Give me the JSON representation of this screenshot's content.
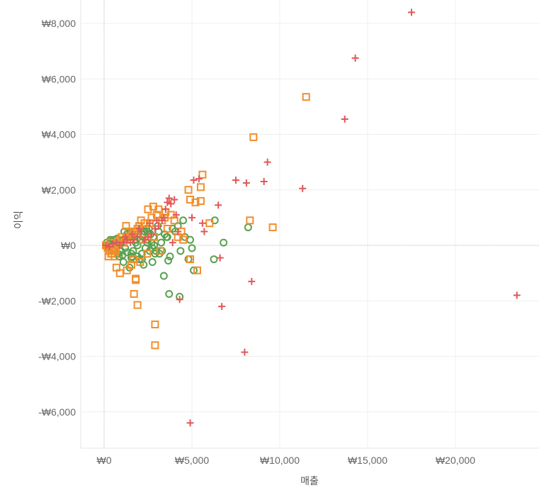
{
  "chart_data": {
    "type": "scatter",
    "title": "",
    "xlabel": "매출",
    "ylabel": "이익",
    "xlim": [
      -1300,
      24800
    ],
    "ylim": [
      -7300,
      8600
    ],
    "x_ticks": [
      0,
      5000,
      10000,
      15000,
      20000
    ],
    "x_tick_labels": [
      "₩0",
      "₩5,000",
      "₩10,000",
      "₩15,000",
      "₩20,000"
    ],
    "y_ticks": [
      -6000,
      -4000,
      -2000,
      0,
      2000,
      4000,
      6000,
      8000
    ],
    "y_tick_labels": [
      "-₩6,000",
      "-₩4,000",
      "-₩2,000",
      "₩0",
      "₩2,000",
      "₩4,000",
      "₩6,000",
      "₩8,000"
    ],
    "grid": true,
    "legend": "none",
    "colors": {
      "series_1": "#59a14f",
      "series_2": "#f28e2b",
      "series_3": "#e15759"
    },
    "series": [
      {
        "marker": "circle",
        "color": "#59a14f",
        "x": [
          4500,
          4900,
          5000,
          6300,
          6800,
          8200,
          6250,
          4600,
          4800,
          5100,
          3900,
          3600,
          3400,
          4200,
          3700,
          4300,
          3650,
          3300,
          2700,
          2800,
          3100,
          2900,
          2500,
          2200,
          2600,
          1900,
          1500,
          1200,
          1400,
          2300,
          2100,
          1800,
          1600,
          1000,
          900,
          700,
          500,
          300,
          100,
          600,
          400,
          1300,
          1700,
          2000,
          2400,
          800,
          1100,
          1450,
          1750,
          2050,
          2350,
          2650,
          2950,
          3250,
          3550,
          200,
          350,
          650,
          950,
          1250,
          1550,
          1850,
          2150,
          2450,
          2750,
          3050,
          550,
          850,
          1150,
          1650,
          1950,
          2250,
          2550,
          2850,
          3150,
          3450,
          3750,
          4050,
          4350,
          150,
          450,
          750,
          1050,
          1350,
          1550,
          1850,
          2150,
          2450,
          2750,
          1000,
          1300,
          1600,
          1900
        ],
        "y": [
          900,
          200,
          -100,
          900,
          100,
          650,
          -500,
          300,
          -500,
          -900,
          600,
          300,
          -1100,
          700,
          -1750,
          -1850,
          -550,
          -200,
          100,
          300,
          500,
          -300,
          200,
          400,
          -200,
          0,
          200,
          -100,
          300,
          500,
          600,
          100,
          -400,
          200,
          -200,
          100,
          50,
          -50,
          0,
          -100,
          150,
          400,
          300,
          -500,
          600,
          -300,
          -600,
          -800,
          500,
          200,
          -100,
          400,
          -200,
          100,
          300,
          -100,
          200,
          0,
          -200,
          300,
          -300,
          400,
          -500,
          100,
          -600,
          700,
          200,
          -400,
          500,
          -200,
          300,
          -700,
          600,
          0,
          -300,
          400,
          -400,
          500,
          -200,
          100,
          -150,
          250,
          -350,
          450,
          -450,
          200,
          -300,
          500,
          -100,
          150,
          -250,
          350,
          -400
        ]
      },
      {
        "marker": "square",
        "color": "#f28e2b",
        "x": [
          11500,
          8500,
          5600,
          5500,
          4800,
          5500,
          5200,
          4900,
          6000,
          5300,
          8300,
          9600,
          2900,
          2900,
          1700,
          1800,
          1900,
          1800,
          900,
          4900,
          4500,
          4400,
          4200,
          4000,
          3800,
          3600,
          3500,
          3300,
          3100,
          3000,
          2800,
          2700,
          2500,
          2300,
          2100,
          2000,
          1900,
          1700,
          1600,
          1500,
          1400,
          1300,
          1200,
          1100,
          1000,
          900,
          800,
          700,
          600,
          500,
          400,
          300,
          200,
          100,
          1300,
          2600,
          3200,
          700,
          1550,
          2450,
          1650,
          2200,
          2850,
          3450,
          600,
          1250,
          1850,
          2050,
          650,
          450,
          350,
          250
        ],
        "y": [
          5350,
          3900,
          2550,
          2100,
          2000,
          1600,
          1550,
          1650,
          800,
          -900,
          900,
          650,
          -2850,
          -3600,
          -1750,
          -1250,
          -2150,
          -1200,
          -1000,
          -500,
          200,
          500,
          300,
          900,
          1100,
          600,
          1200,
          900,
          1300,
          1100,
          1400,
          1000,
          1300,
          800,
          900,
          700,
          600,
          500,
          400,
          300,
          500,
          300,
          200,
          100,
          300,
          200,
          100,
          0,
          -100,
          -200,
          -300,
          -200,
          -100,
          0,
          -900,
          800,
          -200,
          -800,
          -700,
          -300,
          -500,
          200,
          300,
          1000,
          -400,
          700,
          400,
          -600,
          -200,
          -300,
          100,
          -400
        ]
      },
      {
        "marker": "plus",
        "color": "#e15759",
        "x": [
          17500,
          14300,
          13700,
          9300,
          11300,
          7500,
          8100,
          9100,
          5100,
          5400,
          6500,
          4000,
          3700,
          3800,
          3600,
          4100,
          5000,
          5600,
          5700,
          4200,
          6600,
          8400,
          6700,
          8000,
          4900,
          4300,
          23500,
          3900,
          3500,
          3300,
          3100,
          2900,
          2700,
          2500,
          2300,
          2100,
          1900,
          1700,
          1500,
          1300,
          1100,
          900,
          700,
          500,
          300,
          100,
          2000,
          2600,
          3000,
          3400,
          1600,
          1200
        ],
        "y": [
          8400,
          6750,
          4550,
          3000,
          2050,
          2350,
          2250,
          2300,
          2350,
          2400,
          1450,
          1650,
          1700,
          1500,
          1550,
          1100,
          1000,
          800,
          500,
          500,
          -450,
          -1300,
          -2200,
          -3850,
          -6400,
          -1950,
          -1800,
          100,
          1300,
          900,
          700,
          600,
          400,
          300,
          200,
          500,
          300,
          200,
          100,
          200,
          100,
          0,
          100,
          50,
          -50,
          0,
          600,
          800,
          900,
          1000,
          400,
          300
        ]
      }
    ]
  }
}
